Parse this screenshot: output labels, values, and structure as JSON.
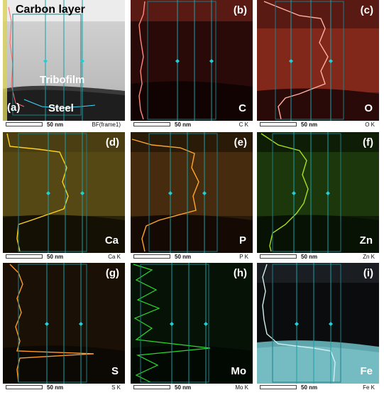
{
  "scale_text": "50 nm",
  "panels": [
    {
      "label": "(a)",
      "channel": "BF(frame1)",
      "carbon_layer": "Carbon layer",
      "tribofilm": "Tribofilm",
      "steel": "Steel"
    },
    {
      "label": "(b)",
      "channel": "C K",
      "element": "C",
      "color": "#ff8a80"
    },
    {
      "label": "(c)",
      "channel": "O K",
      "element": "O",
      "color": "#ff9a86"
    },
    {
      "label": "(d)",
      "channel": "Ca K",
      "element": "Ca",
      "color": "#ffd21f"
    },
    {
      "label": "(e)",
      "channel": "P K",
      "element": "P",
      "color": "#ffa62a"
    },
    {
      "label": "(f)",
      "channel": "Zn K",
      "element": "Zn",
      "color": "#a8e020"
    },
    {
      "label": "(g)",
      "channel": "S K",
      "element": "S",
      "color": "#ff9a2a"
    },
    {
      "label": "(h)",
      "channel": "Mo K",
      "element": "Mo",
      "color": "#2ddc2d"
    },
    {
      "label": "(i)",
      "channel": "Fe K",
      "element": "Fe",
      "color": "#cfeff0"
    }
  ]
}
